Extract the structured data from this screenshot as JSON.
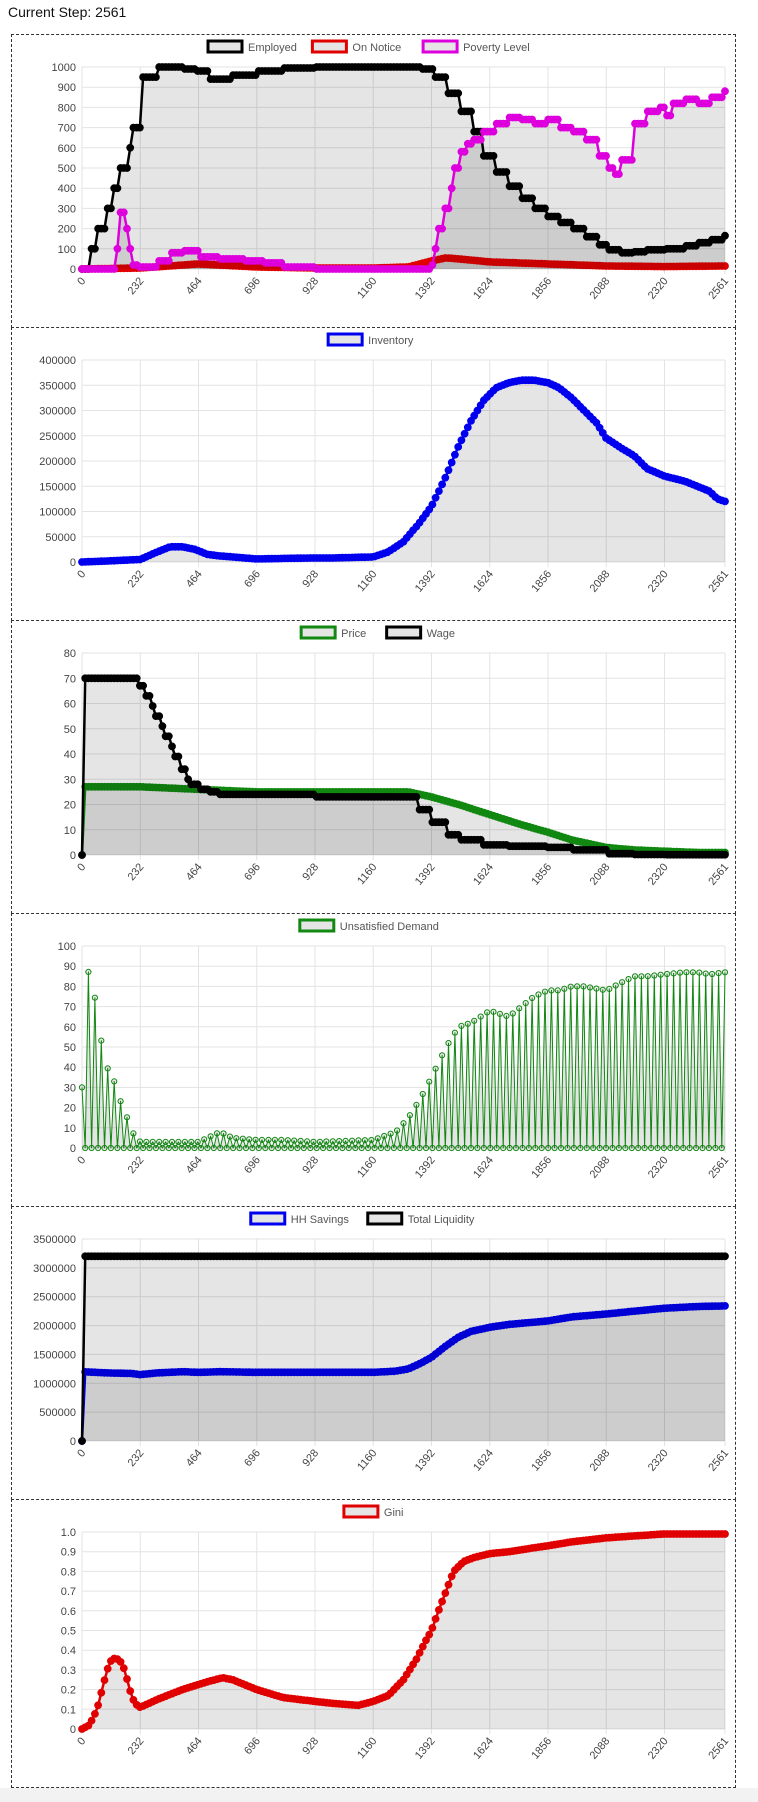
{
  "header": {
    "current_step": "Current Step: 2561"
  },
  "colors": {
    "grid": "#e3e3e3",
    "fill": "rgba(0,0,0,0.10)",
    "tick": "#666666"
  },
  "chart_data": [
    {
      "type": "line",
      "legend": [
        "Employed",
        "On Notice",
        "Poverty Level"
      ],
      "x_ticks": [
        "0",
        "232",
        "464",
        "696",
        "928",
        "1160",
        "1392",
        "1624",
        "1856",
        "2088",
        "2320",
        "2561"
      ],
      "y_ticks": [
        "0",
        "100",
        "200",
        "300",
        "400",
        "500",
        "600",
        "700",
        "800",
        "900",
        "1000"
      ],
      "ylim": [
        0,
        1000
      ],
      "xlim": [
        0,
        2561
      ],
      "grid": true,
      "legend_position": "top",
      "series": [
        {
          "name": "Employed",
          "color": "#000000",
          "stepped": true,
          "x": [
            0,
            30,
            60,
            90,
            120,
            150,
            180,
            200,
            232,
            300,
            400,
            450,
            500,
            600,
            700,
            800,
            928,
            1000,
            1100,
            1200,
            1300,
            1350,
            1400,
            1450,
            1500,
            1550,
            1600,
            1650,
            1700,
            1750,
            1800,
            1850,
            1900,
            1950,
            2000,
            2050,
            2088,
            2150,
            2200,
            2250,
            2320,
            2400,
            2450,
            2500,
            2561
          ],
          "y": [
            0,
            100,
            200,
            300,
            400,
            500,
            600,
            700,
            950,
            1000,
            990,
            980,
            940,
            960,
            980,
            995,
            1000,
            1000,
            1000,
            1000,
            1000,
            990,
            950,
            870,
            780,
            680,
            560,
            480,
            410,
            350,
            300,
            260,
            230,
            200,
            160,
            120,
            95,
            80,
            85,
            95,
            100,
            115,
            130,
            145,
            165
          ]
        },
        {
          "name": "On Notice",
          "color": "#e00000",
          "stepped": false,
          "x": [
            0,
            232,
            464,
            696,
            928,
            1160,
            1300,
            1392,
            1450,
            1500,
            1624,
            1856,
            2088,
            2320,
            2561
          ],
          "y": [
            0,
            5,
            25,
            10,
            5,
            5,
            10,
            40,
            55,
            50,
            35,
            25,
            15,
            12,
            15
          ]
        },
        {
          "name": "Poverty Level",
          "color": "#dd00dd",
          "stepped": true,
          "x": [
            0,
            120,
            140,
            150,
            170,
            180,
            200,
            230,
            300,
            350,
            400,
            464,
            550,
            650,
            720,
            800,
            928,
            1160,
            1300,
            1392,
            1400,
            1420,
            1440,
            1460,
            1480,
            1500,
            1530,
            1560,
            1600,
            1650,
            1700,
            1750,
            1800,
            1856,
            1900,
            1950,
            2000,
            2050,
            2088,
            2120,
            2150,
            2200,
            2250,
            2300,
            2320,
            2350,
            2400,
            2450,
            2500,
            2561
          ],
          "y": [
            0,
            0,
            100,
            280,
            200,
            100,
            20,
            10,
            40,
            80,
            90,
            60,
            50,
            40,
            30,
            10,
            0,
            0,
            0,
            20,
            100,
            200,
            300,
            400,
            500,
            580,
            620,
            640,
            680,
            720,
            750,
            740,
            720,
            740,
            700,
            680,
            640,
            560,
            500,
            470,
            540,
            720,
            780,
            800,
            760,
            820,
            840,
            820,
            850,
            880
          ]
        }
      ]
    },
    {
      "type": "line",
      "legend": [
        "Inventory"
      ],
      "x_ticks": [
        "0",
        "232",
        "464",
        "696",
        "928",
        "1160",
        "1392",
        "1624",
        "1856",
        "2088",
        "2320",
        "2561"
      ],
      "y_ticks": [
        "0",
        "50000",
        "100000",
        "150000",
        "200000",
        "250000",
        "300000",
        "350000",
        "400000"
      ],
      "ylim": [
        0,
        400000
      ],
      "xlim": [
        0,
        2561
      ],
      "grid": true,
      "legend_position": "top",
      "series": [
        {
          "name": "Inventory",
          "color": "#0000ee",
          "stepped": false,
          "x": [
            0,
            100,
            232,
            300,
            350,
            400,
            450,
            500,
            550,
            600,
            696,
            800,
            928,
            1000,
            1160,
            1220,
            1280,
            1340,
            1392,
            1450,
            1500,
            1550,
            1600,
            1650,
            1700,
            1750,
            1800,
            1856,
            1900,
            1950,
            2000,
            2050,
            2088,
            2150,
            2200,
            2250,
            2320,
            2400,
            2450,
            2500,
            2530,
            2561
          ],
          "y": [
            0,
            2000,
            5000,
            20000,
            30000,
            30000,
            25000,
            15000,
            12000,
            10000,
            6000,
            7000,
            8000,
            8000,
            10000,
            20000,
            40000,
            75000,
            110000,
            170000,
            230000,
            280000,
            320000,
            345000,
            355000,
            360000,
            360000,
            355000,
            345000,
            325000,
            300000,
            275000,
            245000,
            225000,
            210000,
            185000,
            170000,
            160000,
            150000,
            140000,
            125000,
            120000
          ]
        }
      ]
    },
    {
      "type": "line",
      "legend": [
        "Price",
        "Wage"
      ],
      "x_ticks": [
        "0",
        "232",
        "464",
        "696",
        "928",
        "1160",
        "1392",
        "1624",
        "1856",
        "2088",
        "2320",
        "2561"
      ],
      "y_ticks": [
        "0",
        "10",
        "20",
        "30",
        "40",
        "50",
        "60",
        "70",
        "80"
      ],
      "ylim": [
        0,
        80
      ],
      "xlim": [
        0,
        2561
      ],
      "grid": true,
      "legend_position": "top",
      "series": [
        {
          "name": "Price",
          "color": "#118811",
          "stepped": false,
          "x": [
            0,
            1,
            232,
            464,
            696,
            928,
            1160,
            1300,
            1392,
            1500,
            1624,
            1750,
            1856,
            1950,
            2088,
            2200,
            2320,
            2450,
            2561
          ],
          "y": [
            0,
            27,
            27,
            26,
            25,
            25,
            25,
            25,
            23,
            20,
            16,
            12,
            9,
            6,
            3,
            2,
            1.5,
            1,
            1
          ]
        },
        {
          "name": "Wage",
          "color": "#000000",
          "stepped": true,
          "x": [
            0,
            1,
            100,
            200,
            230,
            250,
            270,
            290,
            310,
            330,
            350,
            370,
            390,
            410,
            430,
            464,
            500,
            550,
            696,
            928,
            1160,
            1300,
            1340,
            1392,
            1450,
            1500,
            1600,
            1700,
            1856,
            1950,
            2088,
            2200,
            2320,
            2450,
            2561
          ],
          "y": [
            0,
            70,
            70,
            70,
            67,
            63,
            59,
            55,
            51,
            47,
            43,
            39,
            34,
            30,
            28,
            26,
            25,
            24,
            24,
            23,
            23,
            23,
            18,
            13,
            8,
            6,
            4,
            3.5,
            3,
            2,
            0.5,
            0.2,
            0.1,
            0.1,
            0.1
          ]
        }
      ]
    },
    {
      "type": "line",
      "legend": [
        "Unsatisfied Demand"
      ],
      "x_ticks": [
        "0",
        "232",
        "464",
        "696",
        "928",
        "1160",
        "1392",
        "1624",
        "1856",
        "2088",
        "2320",
        "2561"
      ],
      "y_ticks": [
        "0",
        "10",
        "20",
        "30",
        "40",
        "50",
        "60",
        "70",
        "80",
        "90",
        "100"
      ],
      "ylim": [
        0,
        100
      ],
      "xlim": [
        0,
        2561
      ],
      "grid": true,
      "legend_position": "top",
      "series": [
        {
          "name": "Unsatisfied Demand",
          "color": "#118811",
          "stepped": false,
          "oscillating": true,
          "x": [
            0,
            20,
            40,
            60,
            80,
            100,
            120,
            140,
            160,
            180,
            200,
            232,
            464,
            550,
            600,
            696,
            800,
            928,
            1160,
            1250,
            1300,
            1350,
            1392,
            1450,
            1500,
            1550,
            1624,
            1700,
            1750,
            1800,
            1856,
            1900,
            1950,
            2000,
            2088,
            2150,
            2200,
            2250,
            2320,
            2400,
            2450,
            2500,
            2561
          ],
          "y": [
            30,
            90,
            80,
            70,
            50,
            40,
            35,
            30,
            20,
            15,
            8,
            3,
            3,
            8,
            5,
            4,
            4,
            3,
            4,
            8,
            15,
            25,
            35,
            50,
            60,
            62,
            68,
            65,
            70,
            75,
            78,
            78,
            80,
            80,
            78,
            82,
            85,
            85,
            86,
            87,
            87,
            86,
            87
          ]
        }
      ]
    },
    {
      "type": "line",
      "legend": [
        "HH Savings",
        "Total Liquidity"
      ],
      "x_ticks": [
        "0",
        "232",
        "464",
        "696",
        "928",
        "1160",
        "1392",
        "1624",
        "1856",
        "2088",
        "2320",
        "2561"
      ],
      "y_ticks": [
        "0",
        "500000",
        "1000000",
        "1500000",
        "2000000",
        "2500000",
        "3000000",
        "3500000"
      ],
      "ylim": [
        0,
        3500000
      ],
      "xlim": [
        0,
        2561
      ],
      "grid": true,
      "legend_position": "top",
      "series": [
        {
          "name": "HH Savings",
          "color": "#0000ee",
          "stepped": false,
          "x": [
            0,
            1,
            100,
            200,
            232,
            300,
            400,
            464,
            550,
            696,
            928,
            1160,
            1250,
            1300,
            1350,
            1392,
            1450,
            1500,
            1550,
            1624,
            1700,
            1856,
            1950,
            2088,
            2200,
            2320,
            2450,
            2561
          ],
          "y": [
            0,
            1200000,
            1180000,
            1170000,
            1150000,
            1180000,
            1200000,
            1190000,
            1200000,
            1190000,
            1190000,
            1190000,
            1210000,
            1250000,
            1350000,
            1450000,
            1650000,
            1800000,
            1900000,
            1970000,
            2020000,
            2080000,
            2150000,
            2200000,
            2250000,
            2300000,
            2330000,
            2340000
          ]
        },
        {
          "name": "Total Liquidity",
          "color": "#000000",
          "stepped": false,
          "x": [
            0,
            1,
            2561
          ],
          "y": [
            0,
            3200000,
            3200000
          ]
        }
      ]
    },
    {
      "type": "line",
      "legend": [
        "Gini"
      ],
      "x_ticks": [
        "0",
        "232",
        "464",
        "696",
        "928",
        "1160",
        "1392",
        "1624",
        "1856",
        "2088",
        "2320",
        "2561"
      ],
      "y_ticks": [
        "0",
        "0.1",
        "0.2",
        "0.3",
        "0.4",
        "0.5",
        "0.6",
        "0.7",
        "0.8",
        "0.9",
        "1.0"
      ],
      "ylim": [
        0,
        1.0
      ],
      "xlim": [
        0,
        2561
      ],
      "grid": true,
      "legend_position": "top",
      "series": [
        {
          "name": "Gini",
          "color": "#e00000",
          "stepped": false,
          "x": [
            0,
            30,
            60,
            90,
            110,
            130,
            150,
            170,
            190,
            210,
            232,
            300,
            400,
            500,
            560,
            600,
            696,
            800,
            928,
            1000,
            1100,
            1160,
            1220,
            1280,
            1330,
            1370,
            1392,
            1420,
            1450,
            1480,
            1520,
            1560,
            1624,
            1700,
            1800,
            1856,
            1950,
            2088,
            2200,
            2320,
            2450,
            2561
          ],
          "y": [
            0,
            0.02,
            0.1,
            0.25,
            0.34,
            0.36,
            0.35,
            0.3,
            0.2,
            0.13,
            0.11,
            0.15,
            0.2,
            0.24,
            0.26,
            0.25,
            0.2,
            0.16,
            0.14,
            0.13,
            0.12,
            0.14,
            0.17,
            0.25,
            0.35,
            0.45,
            0.5,
            0.6,
            0.7,
            0.8,
            0.85,
            0.87,
            0.89,
            0.9,
            0.92,
            0.93,
            0.95,
            0.97,
            0.98,
            0.99,
            0.99,
            0.99
          ]
        }
      ]
    }
  ]
}
